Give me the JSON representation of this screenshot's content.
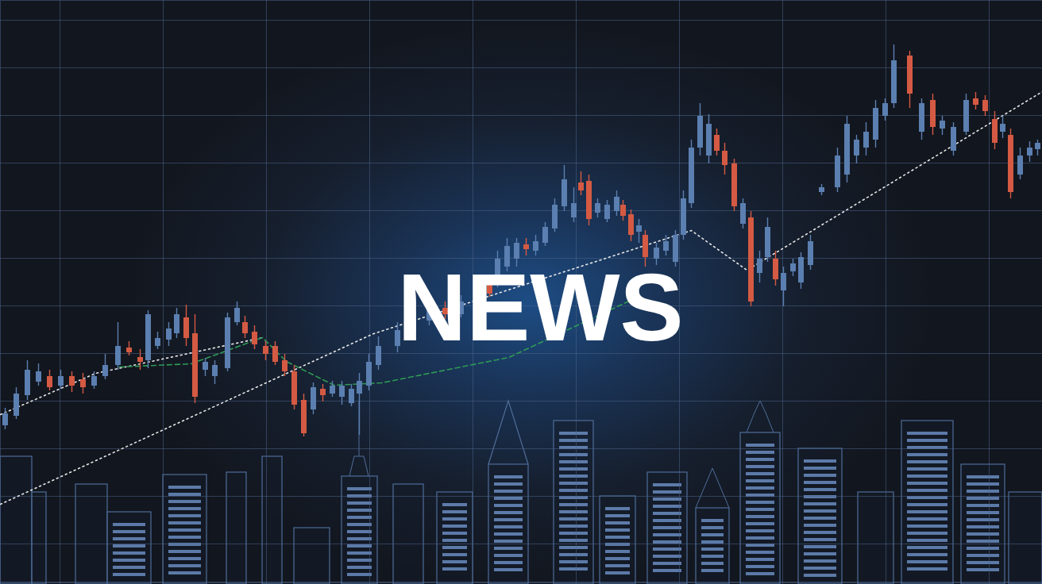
{
  "chart_data": {
    "type": "candlestick",
    "title": "NEWS",
    "x": [
      6,
      20,
      34,
      48,
      62,
      76,
      90,
      104,
      118,
      132,
      148,
      162,
      176,
      186,
      198,
      212,
      222,
      234,
      245,
      258,
      270,
      286,
      298,
      308,
      320,
      334,
      346,
      358,
      370,
      382,
      394,
      406,
      418,
      430,
      442,
      452,
      464,
      476,
      500,
      520,
      540,
      560,
      580,
      600,
      616,
      626,
      638,
      650,
      662,
      674,
      686,
      698,
      710,
      722,
      731,
      741,
      752,
      764,
      776,
      784,
      794,
      804,
      812,
      826,
      838,
      850,
      860,
      870,
      881,
      892,
      902,
      912,
      924,
      935,
      945,
      956,
      966,
      976,
      986,
      998,
      1008,
      1020,
      1034,
      1054,
      1066,
      1078,
      1090,
      1102,
      1114,
      1125,
      1145,
      1160,
      1174,
      1186,
      1200,
      1216,
      1228,
      1240,
      1252,
      1262,
      1272,
      1284,
      1296,
      1306
    ],
    "open": [
      200,
      212,
      238,
      255,
      262,
      250,
      262,
      258,
      250,
      262,
      276,
      298,
      286,
      282,
      300,
      308,
      316,
      336,
      316,
      270,
      262,
      272,
      330,
      330,
      318,
      300,
      300,
      282,
      268,
      232,
      220,
      246,
      240,
      236,
      228,
      240,
      250,
      276,
      300,
      318,
      332,
      348,
      340,
      354,
      378,
      380,
      400,
      410,
      428,
      420,
      430,
      448,
      476,
      462,
      506,
      508,
      468,
      460,
      470,
      478,
      466,
      444,
      440,
      410,
      420,
      406,
      440,
      480,
      550,
      540,
      566,
      546,
      530,
      454,
      462,
      392,
      412,
      410,
      370,
      394,
      380,
      402,
      494,
      500,
      516,
      540,
      550,
      560,
      590,
      606,
      666,
      570,
      610,
      574,
      546,
      570,
      612,
      610,
      586,
      570,
      566,
      516,
      540,
      548
    ],
    "high": [
      222,
      248,
      282,
      278,
      270,
      270,
      268,
      266,
      268,
      290,
      330,
      306,
      296,
      345,
      318,
      330,
      348,
      352,
      340,
      285,
      282,
      342,
      356,
      338,
      326,
      306,
      306,
      290,
      276,
      240,
      254,
      252,
      256,
      256,
      252,
      266,
      290,
      312,
      330,
      342,
      358,
      356,
      364,
      376,
      384,
      420,
      436,
      436,
      436,
      440,
      456,
      486,
      528,
      500,
      520,
      516,
      486,
      484,
      496,
      484,
      472,
      460,
      446,
      430,
      440,
      446,
      496,
      560,
      606,
      592,
      574,
      556,
      536,
      486,
      470,
      420,
      462,
      420,
      400,
      410,
      418,
      440,
      504,
      550,
      590,
      566,
      582,
      610,
      612,
      680,
      672,
      612,
      618,
      590,
      582,
      618,
      620,
      616,
      596,
      590,
      574,
      550,
      558,
      560
    ],
    "low": [
      195,
      208,
      232,
      250,
      244,
      246,
      242,
      240,
      246,
      258,
      270,
      288,
      270,
      272,
      296,
      300,
      310,
      300,
      228,
      262,
      252,
      268,
      326,
      310,
      296,
      282,
      276,
      262,
      220,
      186,
      214,
      230,
      236,
      226,
      224,
      188,
      244,
      270,
      292,
      310,
      326,
      334,
      336,
      350,
      362,
      374,
      394,
      400,
      414,
      414,
      426,
      444,
      470,
      456,
      490,
      452,
      462,
      456,
      464,
      458,
      432,
      430,
      400,
      402,
      414,
      400,
      434,
      474,
      540,
      530,
      540,
      516,
      470,
      448,
      350,
      380,
      406,
      376,
      350,
      388,
      372,
      396,
      490,
      494,
      506,
      530,
      540,
      550,
      584,
      600,
      600,
      560,
      566,
      566,
      540,
      566,
      598,
      590,
      548,
      562,
      486,
      510,
      532,
      540
    ],
    "close": [
      215,
      240,
      270,
      268,
      248,
      262,
      250,
      248,
      262,
      276,
      300,
      292,
      280,
      340,
      310,
      322,
      340,
      310,
      236,
      280,
      276,
      336,
      348,
      316,
      302,
      290,
      280,
      268,
      226,
      190,
      248,
      238,
      250,
      250,
      246,
      256,
      280,
      300,
      320,
      334,
      350,
      340,
      356,
      368,
      366,
      410,
      426,
      430,
      422,
      432,
      450,
      478,
      510,
      480,
      496,
      460,
      480,
      478,
      488,
      464,
      440,
      452,
      412,
      424,
      432,
      440,
      486,
      550,
      590,
      580,
      546,
      528,
      476,
      480,
      356,
      410,
      450,
      384,
      392,
      404,
      412,
      432,
      500,
      540,
      580,
      560,
      570,
      600,
      606,
      660,
      618,
      606,
      576,
      584,
      576,
      610,
      604,
      596,
      556,
      580,
      494,
      540,
      550,
      556
    ],
    "colors": [
      "#5b7fb0",
      "#5b7fb0",
      "#5b7fb0",
      "#5b7fb0",
      "#d45a43",
      "#5b7fb0",
      "#d45a43",
      "#d45a43",
      "#5b7fb0",
      "#5b7fb0",
      "#5b7fb0",
      "#d45a43",
      "#d45a43",
      "#5b7fb0",
      "#5b7fb0",
      "#5b7fb0",
      "#5b7fb0",
      "#d45a43",
      "#d45a43",
      "#5b7fb0",
      "#5b7fb0",
      "#5b7fb0",
      "#5b7fb0",
      "#d45a43",
      "#d45a43",
      "#d45a43",
      "#d45a43",
      "#d45a43",
      "#d45a43",
      "#d45a43",
      "#5b7fb0",
      "#d45a43",
      "#5b7fb0",
      "#5b7fb0",
      "#5b7fb0",
      "#5b7fb0",
      "#5b7fb0",
      "#5b7fb0",
      "#5b7fb0",
      "#5b7fb0",
      "#5b7fb0",
      "#d45a43",
      "#5b7fb0",
      "#5b7fb0",
      "#d45a43",
      "#5b7fb0",
      "#5b7fb0",
      "#5b7fb0",
      "#d45a43",
      "#5b7fb0",
      "#5b7fb0",
      "#5b7fb0",
      "#5b7fb0",
      "#5b7fb0",
      "#d45a43",
      "#d45a43",
      "#5b7fb0",
      "#5b7fb0",
      "#5b7fb0",
      "#d45a43",
      "#d45a43",
      "#5b7fb0",
      "#d45a43",
      "#5b7fb0",
      "#5b7fb0",
      "#5b7fb0",
      "#5b7fb0",
      "#5b7fb0",
      "#5b7fb0",
      "#5b7fb0",
      "#d45a43",
      "#d45a43",
      "#d45a43",
      "#5b7fb0",
      "#d45a43",
      "#5b7fb0",
      "#5b7fb0",
      "#d45a43",
      "#5b7fb0",
      "#5b7fb0",
      "#5b7fb0",
      "#5b7fb0",
      "#5b7fb0",
      "#5b7fb0",
      "#5b7fb0",
      "#5b7fb0",
      "#5b7fb0",
      "#5b7fb0",
      "#5b7fb0",
      "#5b7fb0",
      "#d45a43",
      "#5b7fb0",
      "#d45a43",
      "#5b7fb0",
      "#5b7fb0",
      "#5b7fb0",
      "#d45a43",
      "#d45a43",
      "#d45a43",
      "#5b7fb0",
      "#d45a43",
      "#5b7fb0",
      "#5b7fb0",
      "#5b7fb0"
    ],
    "series": [
      {
        "type": "line",
        "color": "#e6e6e6",
        "line_style": "dotted",
        "x": [
          0,
          120,
          330
        ],
        "values": [
          214,
          266,
          311
        ]
      },
      {
        "type": "line",
        "color": "#e6e6e6",
        "line_style": "dotted",
        "x": [
          0,
          470,
          870,
          940,
          1312
        ],
        "values": [
          101,
          316,
          446,
          396,
          621
        ]
      },
      {
        "type": "line",
        "color": "#2f9a55",
        "line_style": "dashed",
        "x": [
          150,
          240,
          330,
          360,
          420,
          480,
          640,
          800
        ],
        "values": [
          274,
          278,
          311,
          281,
          251,
          254,
          286,
          361
        ]
      }
    ],
    "xlim": [
      0,
      1312
    ],
    "ylim": [
      0,
      736
    ],
    "xticks": [
      75,
      205,
      335,
      465,
      595,
      725,
      855,
      985,
      1115,
      1245
    ],
    "yticks": [
      51,
      111,
      171,
      231,
      291,
      351,
      411,
      471,
      531,
      591,
      651,
      711
    ],
    "grid": true,
    "tick_labels": false
  }
}
